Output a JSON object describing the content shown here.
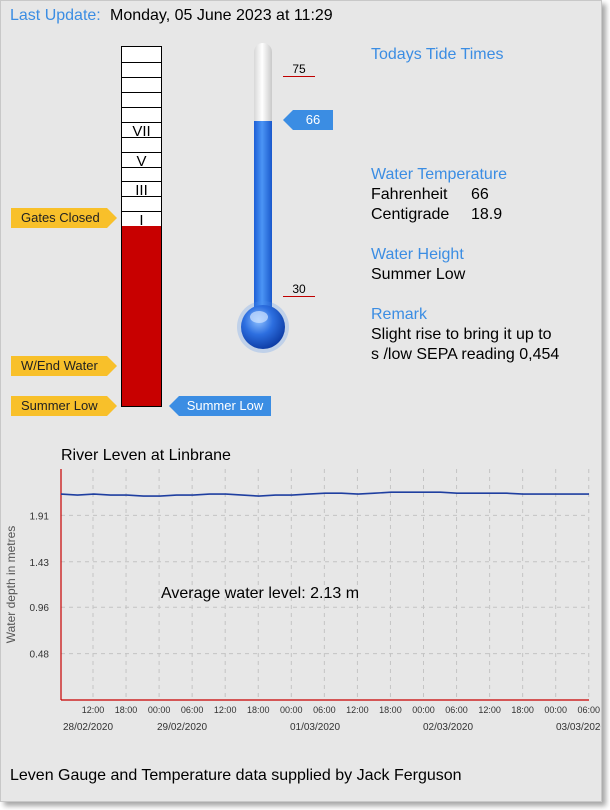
{
  "header": {
    "label": "Last Update:",
    "value": "Monday, 05 June 2023 at 11:29"
  },
  "gauge": {
    "markers": [
      "VII",
      "V",
      "III",
      "I"
    ],
    "fill_color": "#c80000",
    "level_fraction": 0.5
  },
  "left_tags": {
    "gates_closed": "Gates Closed",
    "wend_water": "W/End Water",
    "summer_low": "Summer Low"
  },
  "level_pointer": "Summer Low",
  "thermometer": {
    "max_label": "75",
    "min_label": "30",
    "value_label": "66",
    "value": 66,
    "min": 30,
    "max": 75
  },
  "info": {
    "tide_times": "Todays Tide Times",
    "water_temp_heading": "Water Temperature",
    "fahrenheit_label": "Fahrenheit",
    "fahrenheit_value": "66",
    "centigrade_label": "Centigrade",
    "centigrade_value": "18.9",
    "water_height_heading": "Water Height",
    "water_height_value": "Summer Low",
    "remark_heading": "Remark",
    "remark_line1": "Slight rise to bring it up to",
    "remark_line2": "s /low SEPA reading 0,454"
  },
  "chart_title": "River Leven at Linbrane",
  "chart_data": {
    "type": "line",
    "title": "River Leven at Linbrane",
    "ylabel": "Water depth in metres",
    "ylim": [
      0,
      2.39
    ],
    "y_ticks": [
      "1.91",
      "1.43",
      "0.96",
      "0.48"
    ],
    "x_time_ticks": [
      "12:00",
      "18:00",
      "00:00",
      "06:00",
      "12:00",
      "18:00",
      "00:00",
      "06:00",
      "12:00",
      "18:00",
      "00:00",
      "06:00",
      "12:00",
      "18:00",
      "00:00",
      "06:00"
    ],
    "x_date_ticks": [
      "28/02/2020",
      "29/02/2020",
      "01/03/2020",
      "02/03/2020",
      "03/03/2020"
    ],
    "annotation": "Average water level: 2.13 m",
    "series": [
      {
        "values": [
          2.13,
          2.12,
          2.13,
          2.12,
          2.12,
          2.11,
          2.11,
          2.12,
          2.12,
          2.13,
          2.13,
          2.12,
          2.11,
          2.12,
          2.12,
          2.13,
          2.14,
          2.14,
          2.13,
          2.14,
          2.15,
          2.15,
          2.15,
          2.15,
          2.14,
          2.14,
          2.14,
          2.14,
          2.13,
          2.13,
          2.13,
          2.13,
          2.13
        ]
      }
    ],
    "line_color": "#1f3fa0"
  },
  "footer": "Leven Gauge and Temperature data supplied by Jack Ferguson"
}
